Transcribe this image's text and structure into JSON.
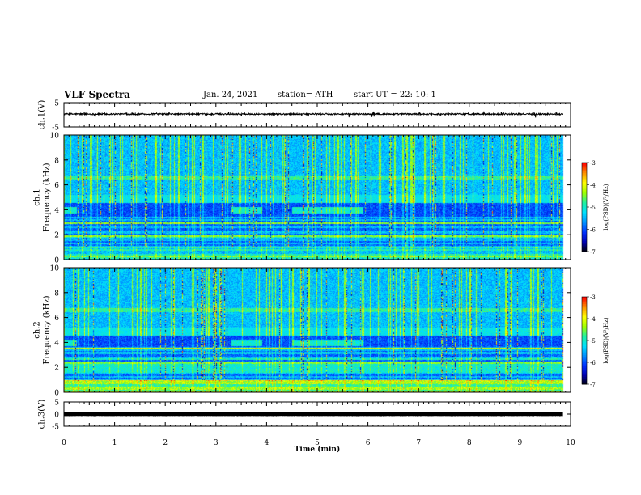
{
  "header": {
    "title": "VLF Spectra",
    "date": "Jan. 24, 2021",
    "station": "station= ATH",
    "start": "start UT = 22: 10: 1"
  },
  "chart_data": [
    {
      "type": "line",
      "ylabel": "ch.1(V)",
      "xlim": [
        0,
        10
      ],
      "ylim": [
        -5,
        5
      ],
      "yticks": [
        "5",
        "-5"
      ],
      "baseline_v": 0.3,
      "noise_amplitude_v": 0.6,
      "color": "#000000"
    },
    {
      "type": "heatmap",
      "ylabel": "ch.1\nFrequency (kHz)",
      "xlim": [
        0,
        10
      ],
      "ylim": [
        0,
        10
      ],
      "yticks": [
        "0",
        "2",
        "4",
        "6",
        "8",
        "10"
      ],
      "colorbar": {
        "label": "log(PSD)(V²/Hz)",
        "range": [
          -7,
          -3
        ],
        "ticks": [
          "-3",
          "-4",
          "-5",
          "-6",
          "-7"
        ]
      }
    },
    {
      "type": "heatmap",
      "ylabel": "ch.2\nFrequency (kHz)",
      "xlim": [
        0,
        10
      ],
      "ylim": [
        0,
        10
      ],
      "yticks": [
        "0",
        "2",
        "4",
        "6",
        "8",
        "10"
      ],
      "colorbar": {
        "label": "log(PSD)(V²/Hz)",
        "range": [
          -7,
          -3
        ],
        "ticks": [
          "-3",
          "-4",
          "-5",
          "-6",
          "-7"
        ]
      }
    },
    {
      "type": "line",
      "ylabel": "ch.3(V)",
      "xlim": [
        0,
        10
      ],
      "ylim": [
        -5,
        5
      ],
      "yticks": [
        "5",
        "0",
        "-5"
      ],
      "baseline_v": 0,
      "noise_amplitude_v": 0.1,
      "color": "#000000"
    }
  ],
  "xaxis": {
    "label": "Time (min)",
    "ticks": [
      "0",
      "1",
      "2",
      "3",
      "4",
      "5",
      "6",
      "7",
      "8",
      "9",
      "10"
    ]
  },
  "colors": {
    "colormap": [
      "#000000",
      "#0000b0",
      "#0030ff",
      "#0090ff",
      "#00e0ff",
      "#20f0a0",
      "#a0ff00",
      "#ffff00",
      "#ff9000",
      "#ff0000",
      "#ffffff"
    ]
  }
}
